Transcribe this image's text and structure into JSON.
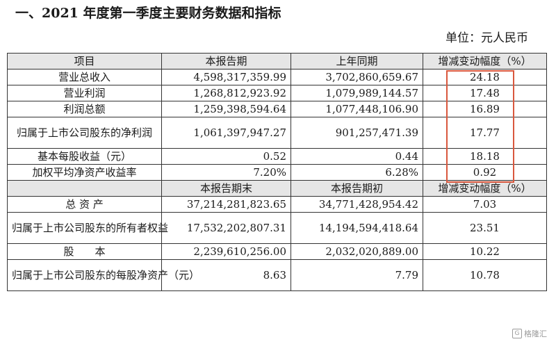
{
  "title": "一、2021 年度第一季度主要财务数据和指标",
  "unit": "单位：元人民币",
  "table1": {
    "headers": [
      "项目",
      "本报告期",
      "上年同期",
      "增减变动幅度（%）"
    ],
    "rows": [
      [
        "营业总收入",
        "4,598,317,359.99",
        "3,702,860,659.67",
        "24.18"
      ],
      [
        "营业利润",
        "1,268,812,923.92",
        "1,079,989,144.57",
        "17.48"
      ],
      [
        "利润总额",
        "1,259,398,594.64",
        "1,077,448,106.90",
        "16.89"
      ],
      [
        "归属于上市公司股东的净利润",
        "1,061,397,947.27",
        "901,257,471.39",
        "17.77"
      ],
      [
        "基本每股收益（元）",
        "0.52",
        "0.44",
        "18.18"
      ],
      [
        "加权平均净资产收益率",
        "7.20%",
        "6.28%",
        "0.92"
      ]
    ]
  },
  "table2": {
    "headers": [
      "",
      "本报告期末",
      "本报告期初",
      "增减变动幅度（%）"
    ],
    "rows": [
      [
        "总 资 产",
        "37,214,281,823.65",
        "34,771,428,954.42",
        "7.03"
      ],
      [
        "归属于上市公司股东的所有者权益",
        "17,532,202,807.31",
        "14,194,594,418.64",
        "23.51"
      ],
      [
        "股　　本",
        "2,239,610,256.00",
        "2,032,020,889.00",
        "10.22"
      ],
      [
        "归属于上市公司股东的每股净资产（元）",
        "8.63",
        "7.79",
        "10.78"
      ]
    ]
  },
  "highlight_color": "#d9573d",
  "watermark": {
    "logo": "G",
    "text": "格隆汇"
  }
}
